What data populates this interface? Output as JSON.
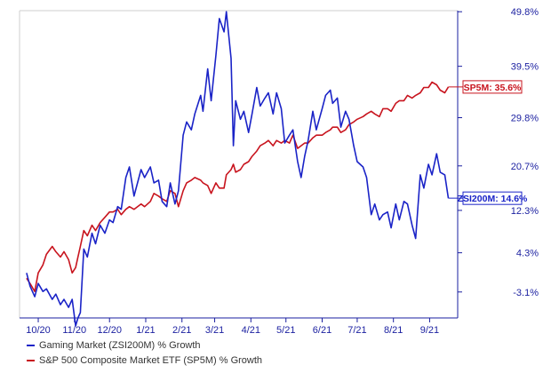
{
  "chart_data": {
    "type": "line",
    "x_ticks": [
      "10/20",
      "11/20",
      "12/20",
      "1/21",
      "2/21",
      "3/21",
      "4/21",
      "5/21",
      "6/21",
      "7/21",
      "8/21",
      "9/21"
    ],
    "y_ticks": [
      "49.8%",
      "39.5%",
      "29.8%",
      "20.7%",
      "12.3%",
      "4.3%",
      "-3.1%"
    ],
    "ylim": [
      -8,
      50
    ],
    "grid": false,
    "legend_position": "bottom-left",
    "series": [
      {
        "name": "Gaming Market (ZSI200M) % Growth",
        "end_label": "ZSI200M: 14.6%",
        "color": "#1a23c7",
        "points": [
          [
            "09/21/2020",
            0.5
          ],
          [
            "09/24/2020",
            -2.0
          ],
          [
            "09/28/2020",
            -4.0
          ],
          [
            "10/01/2020",
            -1.5
          ],
          [
            "10/05/2020",
            -3.0
          ],
          [
            "10/08/2020",
            -2.5
          ],
          [
            "10/13/2020",
            -4.5
          ],
          [
            "10/16/2020",
            -3.5
          ],
          [
            "10/20/2020",
            -5.5
          ],
          [
            "10/23/2020",
            -4.5
          ],
          [
            "10/27/2020",
            -6.0
          ],
          [
            "10/30/2020",
            -4.5
          ],
          [
            "11/02/2020",
            -9.5
          ],
          [
            "11/04/2020",
            -8.0
          ],
          [
            "11/06/2020",
            -7.0
          ],
          [
            "11/09/2020",
            5.0
          ],
          [
            "11/12/2020",
            3.5
          ],
          [
            "11/16/2020",
            8.0
          ],
          [
            "11/19/2020",
            6.0
          ],
          [
            "11/23/2020",
            9.5
          ],
          [
            "11/27/2020",
            8.0
          ],
          [
            "12/01/2020",
            10.5
          ],
          [
            "12/04/2020",
            10.0
          ],
          [
            "12/08/2020",
            13.0
          ],
          [
            "12/11/2020",
            12.5
          ],
          [
            "12/15/2020",
            18.5
          ],
          [
            "12/18/2020",
            20.5
          ],
          [
            "12/22/2020",
            15.0
          ],
          [
            "12/28/2020",
            20.0
          ],
          [
            "12/31/2020",
            18.5
          ],
          [
            "01/05/2021",
            20.5
          ],
          [
            "01/08/2021",
            17.5
          ],
          [
            "01/12/2021",
            18.0
          ],
          [
            "01/15/2021",
            14.0
          ],
          [
            "01/19/2021",
            13.0
          ],
          [
            "01/22/2021",
            17.5
          ],
          [
            "01/26/2021",
            13.5
          ],
          [
            "01/29/2021",
            16.0
          ],
          [
            "02/02/2021",
            26.5
          ],
          [
            "02/05/2021",
            29.0
          ],
          [
            "02/09/2021",
            27.5
          ],
          [
            "02/12/2021",
            30.5
          ],
          [
            "02/17/2021",
            34.0
          ],
          [
            "02/19/2021",
            31.0
          ],
          [
            "02/23/2021",
            39.0
          ],
          [
            "02/26/2021",
            33.0
          ],
          [
            "03/02/2021",
            41.5
          ],
          [
            "03/05/2021",
            48.5
          ],
          [
            "03/09/2021",
            46.0
          ],
          [
            "03/11/2021",
            49.8
          ],
          [
            "03/15/2021",
            41.0
          ],
          [
            "03/17/2021",
            24.5
          ],
          [
            "03/19/2021",
            33.0
          ],
          [
            "03/23/2021",
            29.5
          ],
          [
            "03/26/2021",
            31.0
          ],
          [
            "03/30/2021",
            27.0
          ],
          [
            "04/02/2021",
            30.5
          ],
          [
            "04/06/2021",
            35.5
          ],
          [
            "04/09/2021",
            32.0
          ],
          [
            "04/13/2021",
            33.5
          ],
          [
            "04/16/2021",
            34.5
          ],
          [
            "04/20/2021",
            30.5
          ],
          [
            "04/23/2021",
            34.5
          ],
          [
            "04/27/2021",
            31.5
          ],
          [
            "04/30/2021",
            25.0
          ],
          [
            "05/04/2021",
            26.5
          ],
          [
            "05/07/2021",
            27.5
          ],
          [
            "05/11/2021",
            21.5
          ],
          [
            "05/14/2021",
            18.5
          ],
          [
            "05/17/2021",
            22.5
          ],
          [
            "05/20/2021",
            25.5
          ],
          [
            "05/24/2021",
            31.0
          ],
          [
            "05/27/2021",
            27.5
          ],
          [
            "06/01/2021",
            31.5
          ],
          [
            "06/04/2021",
            34.0
          ],
          [
            "06/08/2021",
            35.0
          ],
          [
            "06/10/2021",
            32.5
          ],
          [
            "06/14/2021",
            33.5
          ],
          [
            "06/17/2021",
            28.0
          ],
          [
            "06/21/2021",
            31.0
          ],
          [
            "06/24/2021",
            29.5
          ],
          [
            "06/28/2021",
            24.5
          ],
          [
            "07/01/2021",
            21.5
          ],
          [
            "07/06/2021",
            20.5
          ],
          [
            "07/09/2021",
            18.5
          ],
          [
            "07/13/2021",
            11.5
          ],
          [
            "07/16/2021",
            13.5
          ],
          [
            "07/20/2021",
            10.5
          ],
          [
            "07/23/2021",
            11.5
          ],
          [
            "07/27/2021",
            12.0
          ],
          [
            "07/30/2021",
            9.0
          ],
          [
            "08/03/2021",
            13.5
          ],
          [
            "08/06/2021",
            10.5
          ],
          [
            "08/10/2021",
            14.0
          ],
          [
            "08/13/2021",
            13.5
          ],
          [
            "08/17/2021",
            9.5
          ],
          [
            "08/20/2021",
            7.0
          ],
          [
            "08/24/2021",
            19.0
          ],
          [
            "08/27/2021",
            16.5
          ],
          [
            "08/31/2021",
            21.0
          ],
          [
            "09/03/2021",
            19.0
          ],
          [
            "09/07/2021",
            23.0
          ],
          [
            "09/10/2021",
            19.5
          ],
          [
            "09/14/2021",
            19.0
          ],
          [
            "09/17/2021",
            14.6
          ]
        ]
      },
      {
        "name": "S&P 500 Composite Market ETF (SP5M) % Growth",
        "end_label": "SP5M: 35.6%",
        "color": "#c8141e",
        "points": [
          [
            "09/21/2020",
            -0.5
          ],
          [
            "09/24/2020",
            -1.5
          ],
          [
            "09/28/2020",
            -3.0
          ],
          [
            "10/01/2020",
            0.5
          ],
          [
            "10/05/2020",
            2.0
          ],
          [
            "10/08/2020",
            4.0
          ],
          [
            "10/13/2020",
            5.5
          ],
          [
            "10/16/2020",
            4.5
          ],
          [
            "10/20/2020",
            3.5
          ],
          [
            "10/23/2020",
            4.5
          ],
          [
            "10/27/2020",
            3.0
          ],
          [
            "10/30/2020",
            0.5
          ],
          [
            "11/02/2020",
            1.5
          ],
          [
            "11/04/2020",
            3.5
          ],
          [
            "11/06/2020",
            5.5
          ],
          [
            "11/09/2020",
            8.5
          ],
          [
            "11/12/2020",
            7.5
          ],
          [
            "11/16/2020",
            9.5
          ],
          [
            "11/19/2020",
            8.5
          ],
          [
            "11/23/2020",
            10.0
          ],
          [
            "11/27/2020",
            11.0
          ],
          [
            "12/01/2020",
            12.0
          ],
          [
            "12/04/2020",
            12.0
          ],
          [
            "12/08/2020",
            12.5
          ],
          [
            "12/11/2020",
            11.5
          ],
          [
            "12/15/2020",
            12.5
          ],
          [
            "12/18/2020",
            13.0
          ],
          [
            "12/22/2020",
            12.5
          ],
          [
            "12/28/2020",
            13.5
          ],
          [
            "12/31/2020",
            13.0
          ],
          [
            "01/05/2021",
            14.0
          ],
          [
            "01/08/2021",
            15.5
          ],
          [
            "01/12/2021",
            15.0
          ],
          [
            "01/15/2021",
            14.5
          ],
          [
            "01/19/2021",
            14.0
          ],
          [
            "01/22/2021",
            16.0
          ],
          [
            "01/26/2021",
            15.5
          ],
          [
            "01/29/2021",
            13.0
          ],
          [
            "02/02/2021",
            16.0
          ],
          [
            "02/05/2021",
            17.5
          ],
          [
            "02/09/2021",
            18.0
          ],
          [
            "02/12/2021",
            18.5
          ],
          [
            "02/17/2021",
            18.0
          ],
          [
            "02/19/2021",
            17.5
          ],
          [
            "02/23/2021",
            17.0
          ],
          [
            "02/26/2021",
            15.5
          ],
          [
            "03/02/2021",
            17.5
          ],
          [
            "03/05/2021",
            16.5
          ],
          [
            "03/09/2021",
            16.5
          ],
          [
            "03/11/2021",
            19.0
          ],
          [
            "03/15/2021",
            20.0
          ],
          [
            "03/17/2021",
            21.0
          ],
          [
            "03/19/2021",
            19.5
          ],
          [
            "03/23/2021",
            20.0
          ],
          [
            "03/26/2021",
            21.0
          ],
          [
            "03/30/2021",
            21.5
          ],
          [
            "04/02/2021",
            22.5
          ],
          [
            "04/06/2021",
            23.5
          ],
          [
            "04/09/2021",
            24.5
          ],
          [
            "04/13/2021",
            25.0
          ],
          [
            "04/16/2021",
            25.5
          ],
          [
            "04/20/2021",
            24.5
          ],
          [
            "04/23/2021",
            25.5
          ],
          [
            "04/27/2021",
            25.0
          ],
          [
            "04/30/2021",
            25.5
          ],
          [
            "05/04/2021",
            25.0
          ],
          [
            "05/07/2021",
            26.5
          ],
          [
            "05/11/2021",
            24.0
          ],
          [
            "05/14/2021",
            24.5
          ],
          [
            "05/17/2021",
            25.0
          ],
          [
            "05/20/2021",
            25.0
          ],
          [
            "05/24/2021",
            26.0
          ],
          [
            "05/27/2021",
            26.5
          ],
          [
            "06/01/2021",
            26.5
          ],
          [
            "06/04/2021",
            27.0
          ],
          [
            "06/08/2021",
            27.5
          ],
          [
            "06/10/2021",
            28.0
          ],
          [
            "06/14/2021",
            28.0
          ],
          [
            "06/17/2021",
            27.0
          ],
          [
            "06/21/2021",
            27.5
          ],
          [
            "06/24/2021",
            28.5
          ],
          [
            "06/28/2021",
            29.0
          ],
          [
            "07/01/2021",
            29.5
          ],
          [
            "07/06/2021",
            30.0
          ],
          [
            "07/09/2021",
            30.5
          ],
          [
            "07/13/2021",
            31.0
          ],
          [
            "07/16/2021",
            30.5
          ],
          [
            "07/20/2021",
            30.0
          ],
          [
            "07/23/2021",
            31.5
          ],
          [
            "07/27/2021",
            31.5
          ],
          [
            "07/30/2021",
            31.0
          ],
          [
            "08/03/2021",
            32.5
          ],
          [
            "08/06/2021",
            33.0
          ],
          [
            "08/10/2021",
            33.0
          ],
          [
            "08/13/2021",
            34.0
          ],
          [
            "08/17/2021",
            33.5
          ],
          [
            "08/20/2021",
            34.0
          ],
          [
            "08/24/2021",
            34.5
          ],
          [
            "08/27/2021",
            35.5
          ],
          [
            "08/31/2021",
            35.5
          ],
          [
            "09/03/2021",
            36.5
          ],
          [
            "09/07/2021",
            36.0
          ],
          [
            "09/10/2021",
            35.0
          ],
          [
            "09/14/2021",
            34.5
          ],
          [
            "09/17/2021",
            35.6
          ]
        ]
      }
    ]
  }
}
